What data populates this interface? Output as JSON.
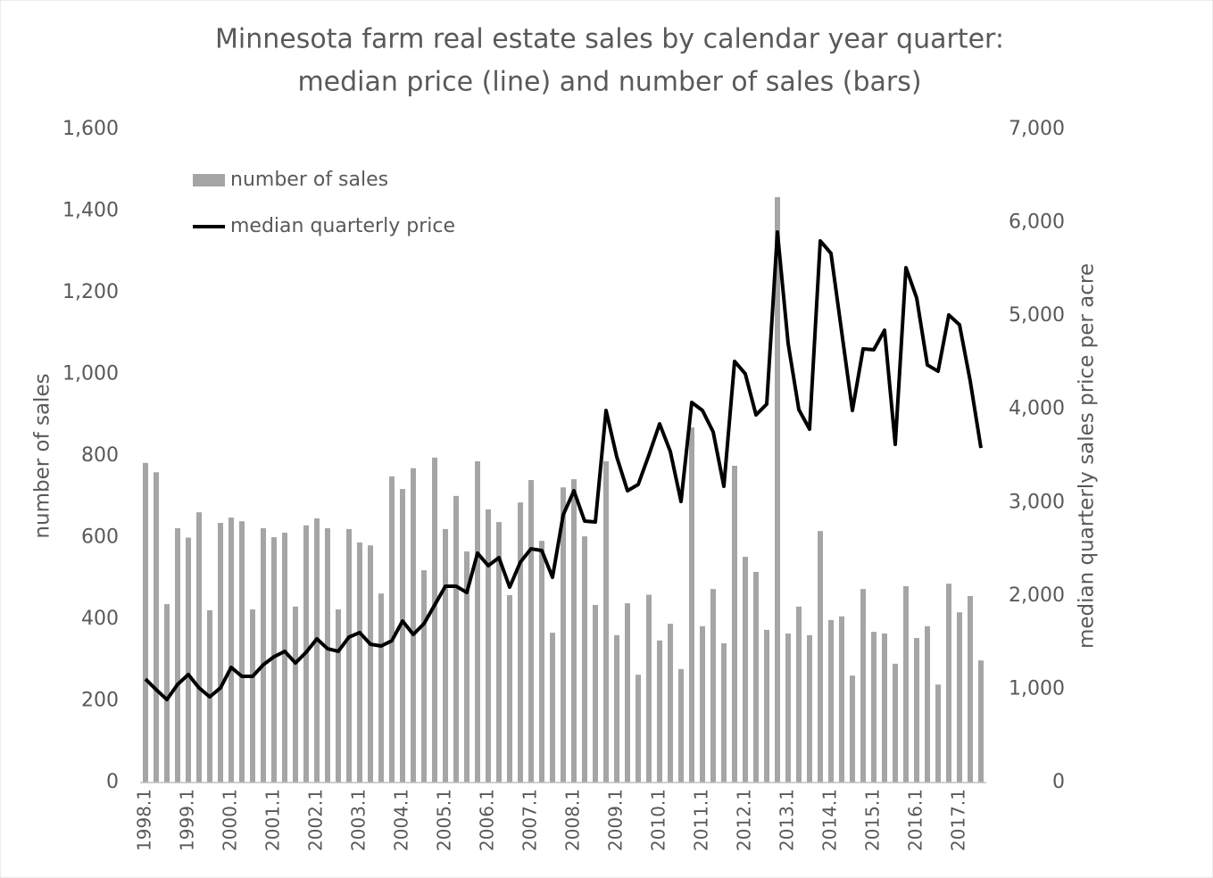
{
  "chart_data": {
    "type": "bar_line",
    "title": [
      "Minnesota farm real estate sales by calendar year quarter:",
      "median price (line) and number of sales (bars)"
    ],
    "y_label": "number of sales",
    "y2_label": "median quarterly sales price per acre",
    "categories": [
      "1998.1",
      null,
      null,
      null,
      "1999.1",
      null,
      null,
      null,
      "2000.1",
      null,
      null,
      null,
      "2001.1",
      null,
      null,
      null,
      "2002.1",
      null,
      null,
      null,
      "2003.1",
      null,
      null,
      null,
      "2004.1",
      null,
      null,
      null,
      "2005.1",
      null,
      null,
      null,
      "2006.1",
      null,
      null,
      null,
      "2007.1",
      null,
      null,
      null,
      "2008.1",
      null,
      null,
      null,
      "2009.1",
      null,
      null,
      null,
      "2010.1",
      null,
      null,
      null,
      "2011.1",
      null,
      null,
      null,
      "2012.1",
      null,
      null,
      null,
      "2013.1",
      null,
      null,
      null,
      "2014.1",
      null,
      null,
      null,
      "2015.1",
      null,
      null,
      null,
      "2016.1",
      null,
      null,
      null,
      "2017.1",
      null,
      null
    ],
    "series": [
      {
        "name": "number of sales",
        "type": "bar",
        "color": "#a5a5a5",
        "axis": "y",
        "values": [
          783,
          760,
          437,
          623,
          600,
          662,
          422,
          636,
          649,
          640,
          424,
          623,
          601,
          612,
          431,
          630,
          647,
          623,
          424,
          621,
          588,
          581,
          463,
          750,
          719,
          770,
          520,
          796,
          621,
          702,
          566,
          787,
          669,
          638,
          459,
          686,
          741,
          592,
          367,
          723,
          743,
          603,
          435,
          787,
          361,
          439,
          264,
          460,
          348,
          389,
          278,
          870,
          383,
          474,
          341,
          776,
          553,
          516,
          374,
          1434,
          365,
          431,
          361,
          616,
          398,
          407,
          262,
          474,
          369,
          365,
          291,
          481,
          354,
          383,
          240,
          487,
          417,
          457,
          299
        ]
      },
      {
        "name": "median quarterly price",
        "type": "line",
        "color": "#000000",
        "axis": "y2",
        "values": [
          1109,
          995,
          889,
          1052,
          1157,
          1014,
          918,
          1014,
          1234,
          1138,
          1138,
          1262,
          1348,
          1406,
          1281,
          1396,
          1540,
          1434,
          1406,
          1559,
          1607,
          1482,
          1463,
          1520,
          1731,
          1587,
          1702,
          1903,
          2104,
          2104,
          2037,
          2458,
          2324,
          2410,
          2094,
          2362,
          2505,
          2486,
          2199,
          2869,
          3127,
          2802,
          2792,
          3988,
          3490,
          3127,
          3194,
          3510,
          3844,
          3548,
          3012,
          4074,
          3988,
          3758,
          3175,
          4514,
          4380,
          3940,
          4055,
          5900,
          4705,
          3997,
          3787,
          5805,
          5671,
          4829,
          3988,
          4648,
          4638,
          4848,
          3624,
          5518,
          5193,
          4475,
          4408,
          5011,
          4906,
          4303,
          3586
        ]
      }
    ],
    "ylim": [
      0,
      1600
    ],
    "yticks": [
      0,
      200,
      400,
      600,
      800,
      {
        "value": 1000,
        "label": "1,000"
      },
      {
        "value": 1200,
        "label": "1,200"
      },
      {
        "value": 1400,
        "label": "1,400"
      },
      {
        "value": 1600,
        "label": "1,600"
      }
    ],
    "y2lim": [
      0,
      7000
    ],
    "y2ticks": [
      0,
      {
        "value": 1000,
        "label": "1,000"
      },
      {
        "value": 2000,
        "label": "2,000"
      },
      {
        "value": 3000,
        "label": "3,000"
      },
      {
        "value": 4000,
        "label": "4,000"
      },
      {
        "value": 5000,
        "label": "5,000"
      },
      {
        "value": 6000,
        "label": "6,000"
      },
      {
        "value": 7000,
        "label": "7,000"
      }
    ],
    "grid": false,
    "legend": "top-left"
  }
}
